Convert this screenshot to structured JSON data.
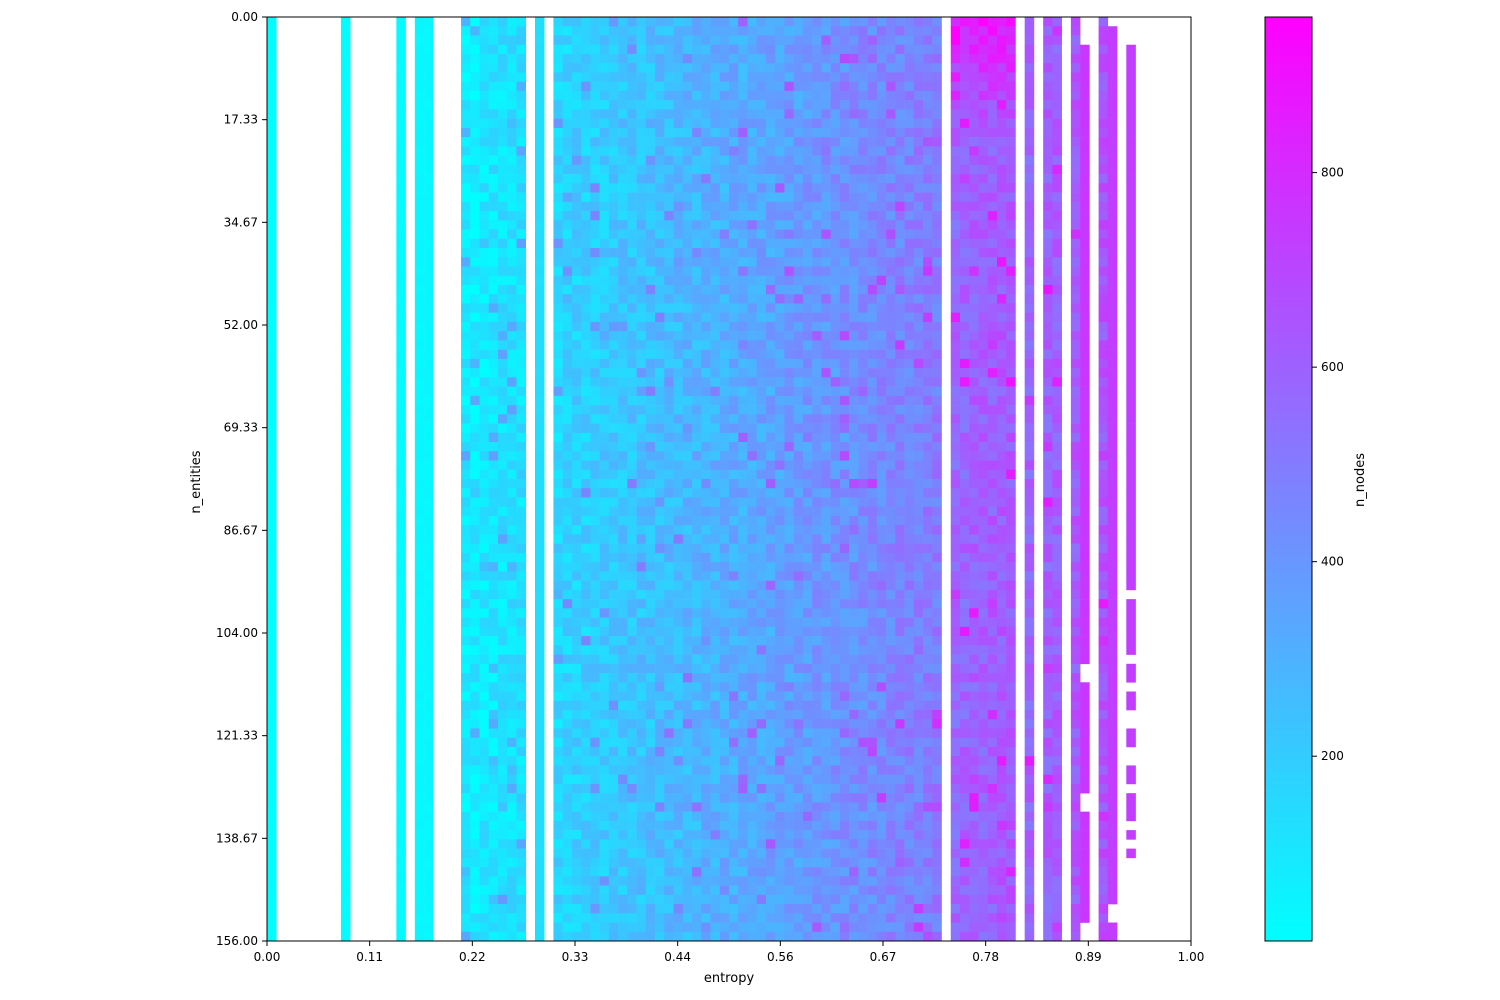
{
  "chart_data": {
    "type": "heatmap",
    "title": "",
    "xlabel": "entropy",
    "ylabel": "n_entities",
    "colorbar_label": "n_nodes",
    "xlim": [
      0,
      1
    ],
    "ylim": [
      156,
      0
    ],
    "x_ticks": [
      "0.00",
      "0.11",
      "0.22",
      "0.33",
      "0.44",
      "0.56",
      "0.67",
      "0.78",
      "0.89",
      "1.00"
    ],
    "y_ticks": [
      "0.00",
      "17.33",
      "34.67",
      "52.00",
      "69.33",
      "86.67",
      "104.00",
      "121.33",
      "138.67",
      "156.00"
    ],
    "colorbar_ticks": [
      "200",
      "400",
      "600",
      "800"
    ],
    "colorbar_range": [
      10,
      960
    ],
    "colormap": "cool",
    "color_low": "#00ffff",
    "color_high": "#ff00ff",
    "grid": false,
    "legend": "colorbar-right",
    "n_columns": 100,
    "n_rows": 100,
    "empty_value_columns": [
      1,
      2,
      3,
      4,
      5,
      6,
      7,
      9,
      10,
      11,
      12,
      13,
      15,
      18,
      19,
      20,
      28,
      30,
      73,
      81,
      83,
      86,
      89,
      92,
      94,
      95,
      96,
      97,
      98,
      99
    ],
    "column_base_values": {
      "0": 15,
      "8": 20,
      "14": 28,
      "16": 38,
      "17": 40,
      "29": 135,
      "88": 760,
      "91": 730,
      "93": 730
    },
    "sparse_columns": {
      "88": {
        "from_row": 3,
        "to_row": 100,
        "gaps": [
          70,
          71,
          84,
          85,
          98,
          99
        ]
      },
      "91": {
        "from_row": 1,
        "to_row": 100,
        "gaps": [
          96,
          97
        ]
      },
      "93": {
        "from_row": 3,
        "to_row": 62,
        "extra_rows": [
          63,
          64,
          65,
          66,
          67,
          68,
          70,
          71,
          73,
          74,
          77,
          78,
          81,
          82,
          84,
          85,
          86,
          88,
          90
        ]
      }
    },
    "dense_region": {
      "from_column": 21,
      "to_column": 90,
      "value_start": 80,
      "value_end": 650,
      "notes": "values rise with entropy from about 80 near 0.20 to about 700 near 0.86, with row-to-row noise; highest values (up to about 960) near entropy 0.78 and n_entities 0-17"
    }
  }
}
